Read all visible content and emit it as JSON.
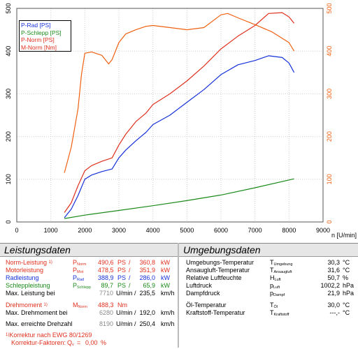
{
  "chart_data": {
    "type": "line",
    "xlabel": "n [U/min]",
    "xlim": [
      0,
      9000
    ],
    "x_ticks": [
      "0",
      "1000",
      "2000",
      "3000",
      "4000",
      "5000",
      "6000",
      "7000",
      "8000",
      "9000"
    ],
    "ylim_left": [
      0,
      500
    ],
    "y_ticks_left": [
      "0",
      "100",
      "200",
      "300",
      "400",
      "500"
    ],
    "ylim_right": [
      0,
      500
    ],
    "y_ticks_right": [
      "0",
      "100",
      "200",
      "300",
      "400",
      "500"
    ],
    "grid": true,
    "legend_position": "top-left",
    "series": [
      {
        "name": "P-Rad [PS]",
        "color": "#1530d8",
        "axis": "left",
        "x": [
          1400,
          1600,
          1800,
          2000,
          2200,
          2500,
          2800,
          3000,
          3200,
          3500,
          3800,
          4000,
          4500,
          5000,
          5500,
          6000,
          6500,
          7000,
          7400,
          7800,
          8000,
          8150
        ],
        "y": [
          10,
          30,
          62,
          100,
          110,
          118,
          124,
          150,
          168,
          190,
          210,
          228,
          250,
          280,
          310,
          345,
          368,
          378,
          389,
          385,
          372,
          350
        ]
      },
      {
        "name": "P-Schlepp [PS]",
        "color": "#1a8a1a",
        "axis": "left",
        "x": [
          1400,
          2000,
          3000,
          4000,
          5000,
          6000,
          7000,
          8150
        ],
        "y": [
          8,
          16,
          27,
          38,
          50,
          63,
          80,
          101
        ]
      },
      {
        "name": "P-Norm [PS]",
        "color": "#e0301e",
        "axis": "left",
        "x": [
          1400,
          1600,
          1800,
          2000,
          2200,
          2500,
          2800,
          3000,
          3200,
          3500,
          3800,
          4000,
          4500,
          5000,
          5500,
          6000,
          6500,
          7000,
          7400,
          7800,
          8000,
          8150
        ],
        "y": [
          22,
          45,
          85,
          120,
          132,
          142,
          150,
          180,
          205,
          235,
          255,
          275,
          300,
          330,
          365,
          405,
          435,
          460,
          488,
          490,
          480,
          465
        ]
      },
      {
        "name": "M-Norm [Nm]",
        "color": "#f06010",
        "axis": "right",
        "x": [
          1400,
          1600,
          1800,
          1900,
          2000,
          2200,
          2500,
          2700,
          2800,
          3000,
          3200,
          3500,
          3800,
          4000,
          4500,
          5000,
          5500,
          6000,
          6200,
          6500,
          7000,
          7500,
          8000,
          8150
        ],
        "y": [
          115,
          175,
          265,
          345,
          395,
          398,
          390,
          370,
          380,
          420,
          440,
          450,
          458,
          460,
          455,
          450,
          455,
          485,
          488,
          478,
          462,
          445,
          420,
          400
        ]
      }
    ]
  },
  "legend": {
    "p_rad": "P-Rad [PS]",
    "p_schlepp": "P-Schlepp [PS]",
    "p_norm": "P-Norm [PS]",
    "m_norm": "M-Norm [Nm]"
  },
  "leistungsdaten": {
    "title": "Leistungsdaten",
    "norm": {
      "label": "Norm-Leistung",
      "sup": "1)",
      "sym": "P",
      "sub": "Norm",
      "v1": "490,6",
      "u1": "PS",
      "v2": "360,8",
      "u2": "kW"
    },
    "motor": {
      "label": "Motorleistung",
      "sym": "P",
      "sub": "Mot",
      "v1": "478,5",
      "u1": "PS",
      "v2": "351,9",
      "u2": "kW"
    },
    "rad": {
      "label": "Radleistung",
      "sym": "P",
      "sub": "Rad",
      "v1": "388,9",
      "u1": "PS",
      "v2": "286,0",
      "u2": "kW"
    },
    "schlepp": {
      "label": "Schleppleistung",
      "sym": "P",
      "sub": "Schlepp",
      "v1": "89,7",
      "u1": "PS",
      "v2": "65,9",
      "u2": "kW"
    },
    "max_leistung": {
      "label": "Max. Leistung bei",
      "rpm": "7710",
      "rpm_unit": "U/min /",
      "speed": "235,5",
      "speed_unit": "km/h"
    },
    "drehmoment": {
      "label": "Drehmoment",
      "sup": "1)",
      "sym": "M",
      "sub": "Norm",
      "v1": "488,3",
      "u1": "Nm"
    },
    "max_drehmoment": {
      "label": "Max. Drehmoment bei",
      "rpm": "6280",
      "rpm_unit": "U/min /",
      "speed": "192,0",
      "speed_unit": "km/h"
    },
    "max_drehzahl": {
      "label": "Max. erreichte Drehzahl",
      "rpm": "8190",
      "rpm_unit": "U/min /",
      "speed": "250,4",
      "speed_unit": "km/h"
    },
    "korrektur": {
      "sup": "1)",
      "label": "Korrektur nach EWG 80/1269"
    },
    "faktoren": {
      "label": "Korrektur-Faktoren:",
      "sym": "Q",
      "sub": "v",
      "eq": "=",
      "value": "0,00",
      "unit": "%"
    }
  },
  "umgebungsdaten": {
    "title": "Umgebungsdaten",
    "rows": [
      {
        "label": "Umgebungs-Temperatur",
        "sym": "T",
        "sub": "Umgebung",
        "value": "30,3",
        "unit": "°C"
      },
      {
        "label": "Ansaugluft-Temperatur",
        "sym": "T",
        "sub": "Ansaugluft",
        "value": "31,6",
        "unit": "°C"
      },
      {
        "label": "Relative Luftfeuchte",
        "sym": "H",
        "sub": "Luft",
        "value": "50,7",
        "unit": "%"
      },
      {
        "label": "Luftdruck",
        "sym": "p",
        "sub": "Luft",
        "value": "1002,2",
        "unit": "hPa"
      },
      {
        "label": "Dampfdruck",
        "sym": "p",
        "sub": "Dampf",
        "value": "21,9",
        "unit": "hPa"
      },
      {
        "label": "Öl-Temperatur",
        "sym": "T",
        "sub": "Öl",
        "value": "30,0",
        "unit": "°C"
      },
      {
        "label": "Kraftstoff-Temperatur",
        "sym": "T",
        "sub": "Kraftstoff",
        "value": "---,-",
        "unit": "°C"
      }
    ]
  }
}
